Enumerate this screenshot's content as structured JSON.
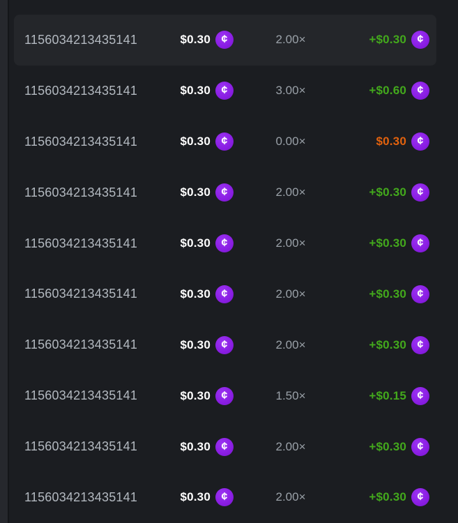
{
  "colors": {
    "background": "#1b1d21",
    "side_edge": "#26282d",
    "row_highlight": "#24262a",
    "id_text": "#b3b9c0",
    "multiplier_text": "#9aa1a8",
    "amount_text": "#ffffff",
    "win_green": "#43a91c",
    "loss_orange": "#e2620e",
    "coin_purple": "#8b1fe4"
  },
  "icons": {
    "coin_glyph": "¢"
  },
  "table": {
    "rows": [
      {
        "id": "1156034213435141",
        "bet": "$0.30",
        "multiplier": "2.00×",
        "payout": "+$0.30",
        "result": "win",
        "highlighted": true
      },
      {
        "id": "1156034213435141",
        "bet": "$0.30",
        "multiplier": "3.00×",
        "payout": "+$0.60",
        "result": "win",
        "highlighted": false
      },
      {
        "id": "1156034213435141",
        "bet": "$0.30",
        "multiplier": "0.00×",
        "payout": "$0.30",
        "result": "loss",
        "highlighted": false
      },
      {
        "id": "1156034213435141",
        "bet": "$0.30",
        "multiplier": "2.00×",
        "payout": "+$0.30",
        "result": "win",
        "highlighted": false
      },
      {
        "id": "1156034213435141",
        "bet": "$0.30",
        "multiplier": "2.00×",
        "payout": "+$0.30",
        "result": "win",
        "highlighted": false
      },
      {
        "id": "1156034213435141",
        "bet": "$0.30",
        "multiplier": "2.00×",
        "payout": "+$0.30",
        "result": "win",
        "highlighted": false
      },
      {
        "id": "1156034213435141",
        "bet": "$0.30",
        "multiplier": "2.00×",
        "payout": "+$0.30",
        "result": "win",
        "highlighted": false
      },
      {
        "id": "1156034213435141",
        "bet": "$0.30",
        "multiplier": "1.50×",
        "payout": "+$0.15",
        "result": "win",
        "highlighted": false
      },
      {
        "id": "1156034213435141",
        "bet": "$0.30",
        "multiplier": "2.00×",
        "payout": "+$0.30",
        "result": "win",
        "highlighted": false
      },
      {
        "id": "1156034213435141",
        "bet": "$0.30",
        "multiplier": "2.00×",
        "payout": "+$0.30",
        "result": "win",
        "highlighted": false
      }
    ]
  }
}
